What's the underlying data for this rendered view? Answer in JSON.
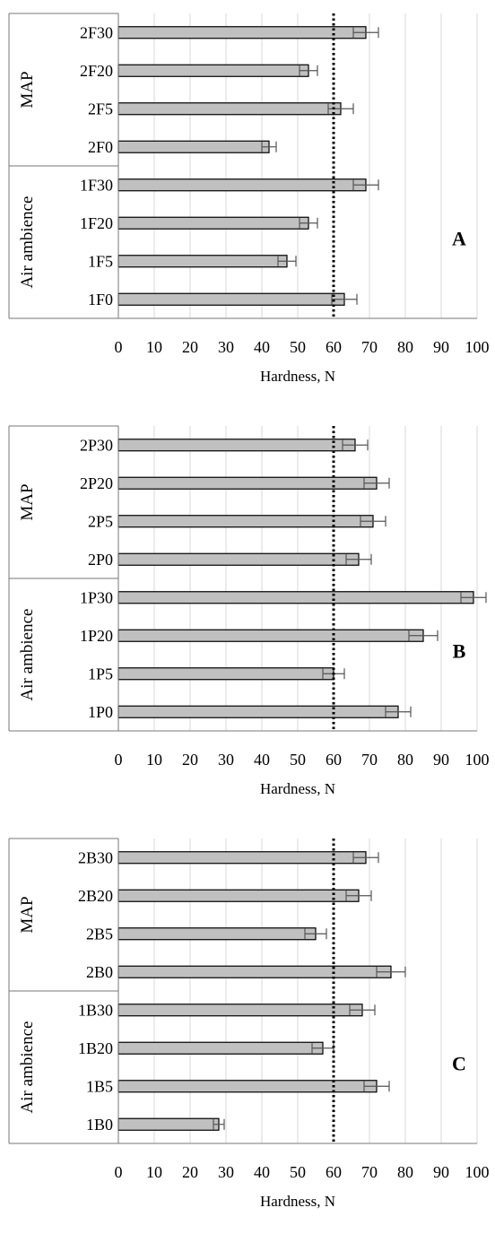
{
  "chart_data": [
    {
      "type": "bar",
      "orientation": "horizontal",
      "panel_label": "A",
      "xlabel": "Hardness, N",
      "xlim": [
        0,
        100
      ],
      "xticks": [
        0,
        10,
        20,
        30,
        40,
        50,
        60,
        70,
        80,
        90,
        100
      ],
      "reference_line": 60,
      "groups": [
        "MAP",
        "Air ambience"
      ],
      "categories": [
        "2F30",
        "2F20",
        "2F5",
        "2F0",
        "1F30",
        "1F20",
        "1F5",
        "1F0"
      ],
      "values": [
        69,
        53,
        62,
        42,
        69,
        53,
        47,
        63
      ],
      "errors": [
        3.5,
        2.5,
        3.5,
        2,
        3.5,
        2.5,
        2.5,
        3.5
      ],
      "bar_color": "#c0c0c0",
      "grid": true
    },
    {
      "type": "bar",
      "orientation": "horizontal",
      "panel_label": "B",
      "xlabel": "Hardness, N",
      "xlim": [
        0,
        100
      ],
      "xticks": [
        0,
        10,
        20,
        30,
        40,
        50,
        60,
        70,
        80,
        90,
        100
      ],
      "reference_line": 60,
      "groups": [
        "MAP",
        "Air ambience"
      ],
      "categories": [
        "2P30",
        "2P20",
        "2P5",
        "2P0",
        "1P30",
        "1P20",
        "1P5",
        "1P0"
      ],
      "values": [
        66,
        72,
        71,
        67,
        99,
        85,
        60,
        78
      ],
      "errors": [
        3.5,
        3.5,
        3.5,
        3.5,
        3.5,
        4,
        3,
        3.5
      ],
      "bar_color": "#c0c0c0",
      "grid": true
    },
    {
      "type": "bar",
      "orientation": "horizontal",
      "panel_label": "C",
      "xlabel": "Hardness, N",
      "xlim": [
        0,
        100
      ],
      "xticks": [
        0,
        10,
        20,
        30,
        40,
        50,
        60,
        70,
        80,
        90,
        100
      ],
      "reference_line": 60,
      "groups": [
        "MAP",
        "Air ambience"
      ],
      "categories": [
        "2B30",
        "2B20",
        "2B5",
        "2B0",
        "1B30",
        "1B20",
        "1B5",
        "1B0"
      ],
      "values": [
        69,
        67,
        55,
        76,
        68,
        57,
        72,
        28
      ],
      "errors": [
        3.5,
        3.5,
        3,
        4,
        3.5,
        3,
        3.5,
        1.5
      ],
      "bar_color": "#c0c0c0",
      "grid": true
    }
  ]
}
